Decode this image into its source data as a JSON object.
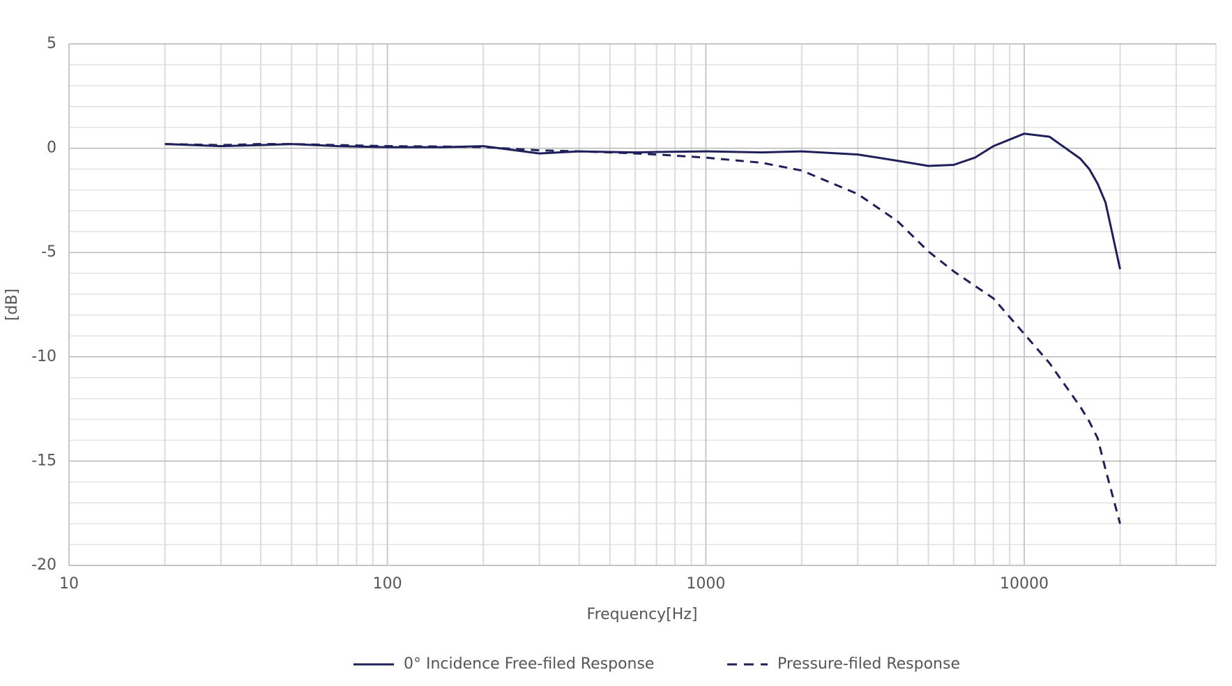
{
  "chart_data": {
    "type": "line",
    "x_label": "Frequency[Hz]",
    "y_label": "[dB]",
    "x": [
      20,
      30,
      40,
      50,
      70,
      100,
      150,
      200,
      300,
      400,
      500,
      600,
      700,
      1000,
      1500,
      2000,
      3000,
      4000,
      5000,
      6000,
      7000,
      8000,
      10000,
      12000,
      15000,
      16000,
      17000,
      18000,
      20000
    ],
    "series": [
      {
        "name": "0° Incidence Free-filed Response",
        "color": "#1f1f5a",
        "dash": false,
        "values": [
          0.2,
          0.1,
          0.15,
          0.2,
          0.1,
          0.05,
          0.05,
          0.1,
          -0.25,
          -0.15,
          -0.18,
          -0.2,
          -0.18,
          -0.15,
          -0.2,
          -0.15,
          -0.3,
          -0.6,
          -0.85,
          -0.8,
          -0.45,
          0.1,
          0.7,
          0.55,
          -0.5,
          -1.0,
          -1.7,
          -2.6,
          -5.8
        ]
      },
      {
        "name": "Pressure-filed Response",
        "color": "#1f1f5a",
        "dash": true,
        "values": [
          0.2,
          0.15,
          0.2,
          0.2,
          0.15,
          0.1,
          0.08,
          0.05,
          -0.1,
          -0.15,
          -0.2,
          -0.25,
          -0.3,
          -0.45,
          -0.7,
          -1.07,
          -2.2,
          -3.5,
          -4.95,
          -5.9,
          -6.6,
          -7.2,
          -8.9,
          -10.3,
          -12.4,
          -13.1,
          -13.9,
          -15.4,
          -18
        ]
      }
    ],
    "xlim": [
      10,
      40000
    ],
    "xticks": [
      10,
      100,
      1000,
      10000
    ],
    "x_log": true,
    "ylim": [
      -20,
      5
    ],
    "yticks": [
      -20,
      -15,
      -10,
      -5,
      0,
      5
    ],
    "grid": true,
    "minor_grid": true,
    "legend": "bottom"
  }
}
